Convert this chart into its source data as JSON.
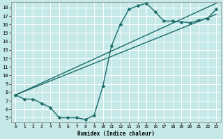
{
  "xlabel": "Humidex (Indice chaleur)",
  "bg_color": "#c5e8e8",
  "grid_color": "#ffffff",
  "line_color": "#1a6b6b",
  "xlim": [
    -0.5,
    23.5
  ],
  "ylim": [
    4.5,
    18.6
  ],
  "xticks": [
    0,
    1,
    2,
    3,
    4,
    5,
    6,
    7,
    8,
    9,
    10,
    11,
    12,
    13,
    14,
    15,
    16,
    17,
    18,
    19,
    20,
    21,
    22,
    23
  ],
  "yticks": [
    5,
    6,
    7,
    8,
    9,
    10,
    11,
    12,
    13,
    14,
    15,
    16,
    17,
    18
  ],
  "line1_x": [
    0,
    1,
    2,
    3,
    4,
    5,
    6,
    7,
    8,
    9,
    10,
    11,
    12,
    13,
    14,
    15,
    16,
    17,
    18,
    19,
    20,
    21,
    22,
    23
  ],
  "line1_y": [
    7.7,
    7.2,
    7.2,
    6.7,
    6.2,
    5.0,
    5.0,
    5.0,
    4.8,
    5.3,
    8.7,
    13.5,
    16.0,
    17.8,
    18.2,
    18.5,
    17.5,
    16.4,
    16.4,
    16.3,
    16.2,
    16.5,
    16.7,
    17.8
  ],
  "line2_x": [
    0,
    23
  ],
  "line2_y": [
    7.7,
    18.5
  ],
  "line3_x": [
    0,
    23
  ],
  "line3_y": [
    7.7,
    17.2
  ],
  "markersize": 2.5,
  "linewidth": 1.0
}
